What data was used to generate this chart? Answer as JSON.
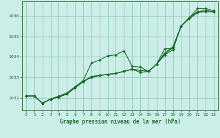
{
  "title": "Graphe pression niveau de la mer (hPa)",
  "bg_color": "#cceee8",
  "grid_color": "#99ccbb",
  "line_color": "#1a6b2a",
  "spine_color": "#336633",
  "xlim": [
    -0.5,
    23.5
  ],
  "ylim": [
    1031.4,
    1036.7
  ],
  "yticks": [
    1032,
    1033,
    1034,
    1035,
    1036
  ],
  "xticks": [
    0,
    1,
    2,
    3,
    4,
    5,
    6,
    7,
    8,
    9,
    10,
    11,
    12,
    13,
    14,
    15,
    16,
    17,
    18,
    19,
    20,
    21,
    22,
    23
  ],
  "series": [
    [
      1032.1,
      1032.1,
      1031.75,
      1031.95,
      1032.1,
      1032.25,
      1032.55,
      1032.85,
      1033.7,
      1033.85,
      1034.05,
      1034.1,
      1034.3,
      1033.55,
      1033.5,
      1033.3,
      1033.65,
      1034.4,
      1034.4,
      1035.5,
      1035.9,
      1036.35,
      1036.35,
      1036.25
    ],
    [
      1032.1,
      1032.1,
      1031.75,
      1031.95,
      1032.05,
      1032.2,
      1032.5,
      1032.8,
      1033.0,
      1033.1,
      1033.15,
      1033.2,
      1033.3,
      1033.4,
      1033.25,
      1033.3,
      1033.65,
      1034.1,
      1034.35,
      1035.5,
      1035.85,
      1036.15,
      1036.2,
      1036.2
    ],
    [
      1032.1,
      1032.1,
      1031.75,
      1031.95,
      1032.05,
      1032.2,
      1032.5,
      1032.8,
      1033.05,
      1033.1,
      1033.15,
      1033.2,
      1033.3,
      1033.4,
      1033.35,
      1033.3,
      1033.65,
      1034.15,
      1034.45,
      1035.5,
      1035.9,
      1036.2,
      1036.25,
      1036.2
    ],
    [
      1032.1,
      1032.1,
      1031.75,
      1031.95,
      1032.05,
      1032.2,
      1032.5,
      1032.8,
      1033.05,
      1033.1,
      1033.15,
      1033.2,
      1033.3,
      1033.4,
      1033.35,
      1033.3,
      1033.65,
      1034.2,
      1034.5,
      1035.5,
      1035.9,
      1036.2,
      1036.25,
      1036.2
    ]
  ]
}
